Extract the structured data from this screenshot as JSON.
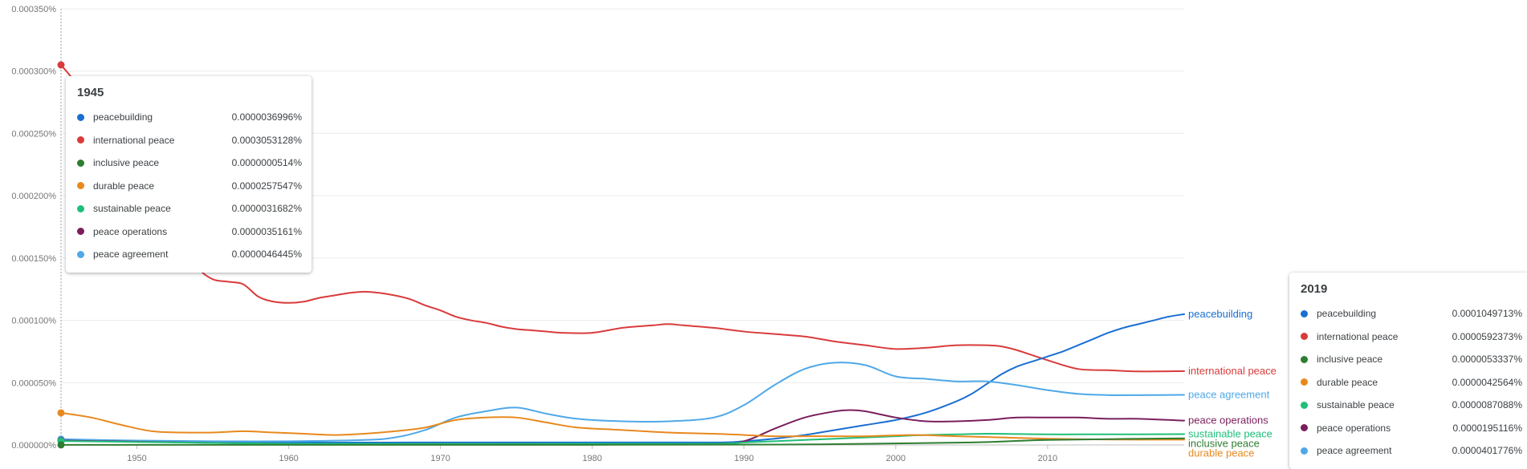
{
  "chart_data": {
    "type": "line",
    "title": "",
    "xlabel": "",
    "ylabel": "",
    "xlim": [
      1945,
      2019
    ],
    "ylim": [
      0,
      0.00035
    ],
    "y_ticks": [
      "0.000000%",
      "0.000050%",
      "0.000100%",
      "0.000150%",
      "0.000200%",
      "0.000250%",
      "0.000300%",
      "0.000350%"
    ],
    "y_tick_values": [
      0,
      5e-05,
      0.0001,
      0.00015,
      0.0002,
      0.00025,
      0.0003,
      0.00035
    ],
    "x_ticks": [
      "1950",
      "1960",
      "1970",
      "1980",
      "1990",
      "2000",
      "2010"
    ],
    "x_tick_values": [
      1950,
      1960,
      1970,
      1980,
      1990,
      2000,
      2010
    ],
    "grid": "horizontal",
    "series": [
      {
        "name": "international peace",
        "color": "#d93b3b",
        "x": [
          1945,
          1946,
          1948,
          1950,
          1952,
          1953,
          1954,
          1955,
          1956,
          1957,
          1958,
          1959,
          1960,
          1961,
          1962,
          1963,
          1964,
          1965,
          1966,
          1967,
          1968,
          1969,
          1970,
          1971,
          1972,
          1973,
          1974,
          1975,
          1976,
          1977,
          1978,
          1980,
          1982,
          1984,
          1985,
          1986,
          1988,
          1990,
          1992,
          1994,
          1996,
          1998,
          2000,
          2002,
          2004,
          2006,
          2007,
          2008,
          2010,
          2012,
          2014,
          2016,
          2019
        ],
        "y": [
          0.000305,
          0.00029,
          0.000255,
          0.00022,
          0.00018,
          0.00016,
          0.000142,
          0.000133,
          0.000131,
          0.000129,
          0.000119,
          0.000115,
          0.000114,
          0.000115,
          0.000118,
          0.00012,
          0.000122,
          0.000123,
          0.000122,
          0.00012,
          0.000117,
          0.000112,
          0.000108,
          0.000103,
          0.0001,
          9.8e-05,
          9.5e-05,
          9.3e-05,
          9.2e-05,
          9.1e-05,
          9e-05,
          9e-05,
          9.4e-05,
          9.6e-05,
          9.7e-05,
          9.6e-05,
          9.4e-05,
          9.1e-05,
          8.9e-05,
          8.7e-05,
          8.3e-05,
          8e-05,
          7.7e-05,
          7.8e-05,
          8e-05,
          8e-05,
          7.9e-05,
          7.6e-05,
          6.8e-05,
          6.1e-05,
          6e-05,
          5.9e-05,
          5.92373e-05
        ]
      },
      {
        "name": "peacebuilding",
        "color": "#1a6fd1",
        "x": [
          1945,
          1950,
          1960,
          1970,
          1980,
          1988,
          1990,
          1992,
          1994,
          1996,
          1998,
          2000,
          2002,
          2004,
          2005,
          2006,
          2007,
          2008,
          2009,
          2010,
          2011,
          2012,
          2013,
          2014,
          2015,
          2016,
          2017,
          2018,
          2019
        ],
        "y": [
          3.6996e-06,
          3e-06,
          2e-06,
          2e-06,
          2e-06,
          2e-06,
          3e-06,
          5e-06,
          8e-06,
          1.2e-05,
          1.6e-05,
          2e-05,
          2.6e-05,
          3.5e-05,
          4.1e-05,
          4.9e-05,
          5.7e-05,
          6.3e-05,
          6.7e-05,
          7.1e-05,
          7.5e-05,
          8e-05,
          8.5e-05,
          9e-05,
          9.4e-05,
          9.7e-05,
          0.0001,
          0.000103,
          0.0001049713
        ]
      },
      {
        "name": "peace agreement",
        "color": "#4fa8e8",
        "x": [
          1945,
          1950,
          1955,
          1960,
          1965,
          1967,
          1969,
          1971,
          1973,
          1975,
          1977,
          1979,
          1982,
          1985,
          1988,
          1990,
          1992,
          1994,
          1996,
          1998,
          2000,
          2002,
          2004,
          2006,
          2008,
          2010,
          2012,
          2014,
          2016,
          2019
        ],
        "y": [
          4.6445e-06,
          3.5e-06,
          3e-06,
          3e-06,
          4e-06,
          6e-06,
          1.2e-05,
          2.2e-05,
          2.7e-05,
          3e-05,
          2.5e-05,
          2.1e-05,
          1.9e-05,
          1.9e-05,
          2.2e-05,
          3.2e-05,
          4.8e-05,
          6.1e-05,
          6.6e-05,
          6.4e-05,
          5.5e-05,
          5.3e-05,
          5.1e-05,
          5.1e-05,
          4.8e-05,
          4.4e-05,
          4.1e-05,
          4e-05,
          4e-05,
          4.01776e-05
        ]
      },
      {
        "name": "peace operations",
        "color": "#7a1f5c",
        "x": [
          1945,
          1960,
          1980,
          1988,
          1990,
          1992,
          1994,
          1996,
          1997,
          1998,
          2000,
          2002,
          2004,
          2006,
          2008,
          2010,
          2012,
          2014,
          2016,
          2019
        ],
        "y": [
          3.5161e-06,
          1e-06,
          1e-06,
          1e-06,
          3e-06,
          1.3e-05,
          2.2e-05,
          2.7e-05,
          2.8e-05,
          2.7e-05,
          2.2e-05,
          1.9e-05,
          1.9e-05,
          2e-05,
          2.2e-05,
          2.2e-05,
          2.2e-05,
          2.1e-05,
          2.1e-05,
          1.95116e-05
        ]
      },
      {
        "name": "sustainable peace",
        "color": "#1fbf7a",
        "x": [
          1945,
          1960,
          1980,
          1988,
          1990,
          1992,
          1994,
          1996,
          1998,
          2000,
          2002,
          2004,
          2006,
          2008,
          2010,
          2012,
          2014,
          2016,
          2019
        ],
        "y": [
          3.1682e-06,
          1e-06,
          1e-06,
          1e-06,
          2e-06,
          3e-06,
          4e-06,
          5e-06,
          6e-06,
          7e-06,
          8e-06,
          8.5e-06,
          9e-06,
          8.8e-06,
          8.5e-06,
          8.5e-06,
          8.5e-06,
          8.5e-06,
          8.7088e-06
        ]
      },
      {
        "name": "durable peace",
        "color": "#e8891e",
        "x": [
          1945,
          1947,
          1949,
          1951,
          1953,
          1955,
          1957,
          1959,
          1961,
          1963,
          1965,
          1967,
          1969,
          1971,
          1973,
          1975,
          1977,
          1979,
          1982,
          1985,
          1988,
          1990,
          1992,
          1995,
          1998,
          2001,
          2004,
          2007,
          2010,
          2013,
          2016,
          2019
        ],
        "y": [
          2.57547e-05,
          2.2e-05,
          1.6e-05,
          1.1e-05,
          1e-05,
          1e-05,
          1.1e-05,
          1e-05,
          9e-06,
          8e-06,
          9e-06,
          1.1e-05,
          1.4e-05,
          2e-05,
          2.2e-05,
          2.2e-05,
          1.8e-05,
          1.4e-05,
          1.2e-05,
          1e-05,
          9e-06,
          8e-06,
          7e-06,
          7e-06,
          7e-06,
          8e-06,
          7e-06,
          6e-06,
          5e-06,
          4.5e-06,
          4.3e-06,
          4.2564e-06
        ]
      },
      {
        "name": "inclusive peace",
        "color": "#2e7d32",
        "x": [
          1945,
          1980,
          1995,
          2005,
          2010,
          2019
        ],
        "y": [
          5.14e-08,
          1e-07,
          5e-07,
          2e-06,
          4e-06,
          5.3337e-06
        ]
      }
    ],
    "legend": "inline labels at right end of each line"
  },
  "tooltips": [
    {
      "year": "1945",
      "rows": [
        {
          "name": "peacebuilding",
          "value": "0.0000036996%",
          "color": "#1a6fd1"
        },
        {
          "name": "international peace",
          "value": "0.0003053128%",
          "color": "#d93b3b"
        },
        {
          "name": "inclusive peace",
          "value": "0.0000000514%",
          "color": "#2e7d32"
        },
        {
          "name": "durable peace",
          "value": "0.0000257547%",
          "color": "#e8891e"
        },
        {
          "name": "sustainable peace",
          "value": "0.0000031682%",
          "color": "#1fbf7a"
        },
        {
          "name": "peace operations",
          "value": "0.0000035161%",
          "color": "#7a1f5c"
        },
        {
          "name": "peace agreement",
          "value": "0.0000046445%",
          "color": "#4fa8e8"
        }
      ]
    },
    {
      "year": "2019",
      "rows": [
        {
          "name": "peacebuilding",
          "value": "0.0001049713%",
          "color": "#1a6fd1"
        },
        {
          "name": "international peace",
          "value": "0.0000592373%",
          "color": "#d93b3b"
        },
        {
          "name": "inclusive peace",
          "value": "0.0000053337%",
          "color": "#2e7d32"
        },
        {
          "name": "durable peace",
          "value": "0.0000042564%",
          "color": "#e8891e"
        },
        {
          "name": "sustainable peace",
          "value": "0.0000087088%",
          "color": "#1fbf7a"
        },
        {
          "name": "peace operations",
          "value": "0.0000195116%",
          "color": "#7a1f5c"
        },
        {
          "name": "peace agreement",
          "value": "0.0000401776%",
          "color": "#4fa8e8"
        }
      ]
    }
  ]
}
